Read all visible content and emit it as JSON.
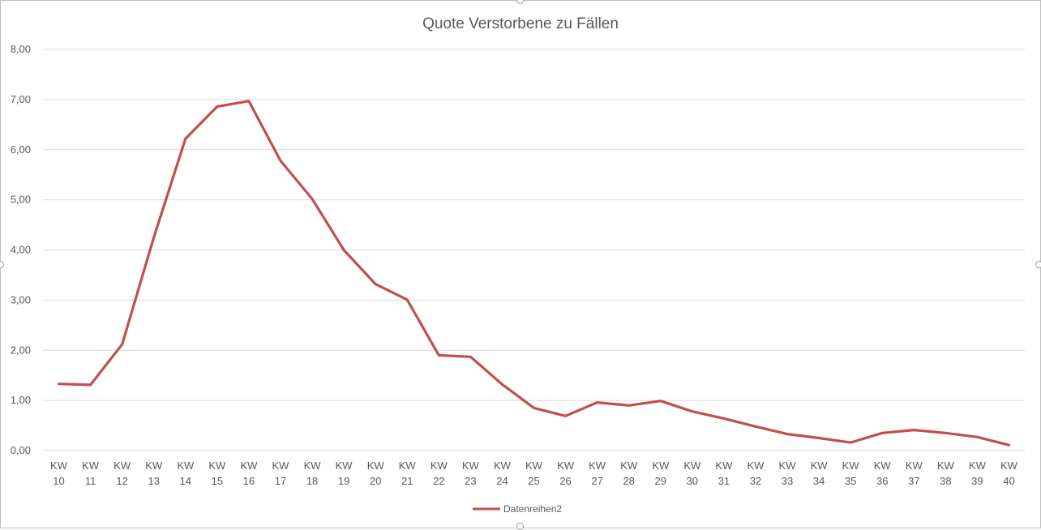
{
  "chart_data": {
    "type": "line",
    "title": "Quote Verstorbene zu Fällen",
    "xlabel": "",
    "ylabel": "",
    "ylim": [
      0,
      8
    ],
    "yticks": [
      "0,00",
      "1,00",
      "2,00",
      "3,00",
      "4,00",
      "5,00",
      "6,00",
      "7,00",
      "8,00"
    ],
    "categories": [
      [
        "KW",
        "10"
      ],
      [
        "KW",
        "11"
      ],
      [
        "KW",
        "12"
      ],
      [
        "KW",
        "13"
      ],
      [
        "KW",
        "14"
      ],
      [
        "KW",
        "15"
      ],
      [
        "KW",
        "16"
      ],
      [
        "KW",
        "17"
      ],
      [
        "KW",
        "18"
      ],
      [
        "KW",
        "19"
      ],
      [
        "KW",
        "20"
      ],
      [
        "KW",
        "21"
      ],
      [
        "KW",
        "22"
      ],
      [
        "KW",
        "23"
      ],
      [
        "KW",
        "24"
      ],
      [
        "KW",
        "25"
      ],
      [
        "KW",
        "26"
      ],
      [
        "KW",
        "27"
      ],
      [
        "KW",
        "28"
      ],
      [
        "KW",
        "29"
      ],
      [
        "KW",
        "30"
      ],
      [
        "KW",
        "31"
      ],
      [
        "KW",
        "32"
      ],
      [
        "KW",
        "33"
      ],
      [
        "KW",
        "34"
      ],
      [
        "KW",
        "35"
      ],
      [
        "KW",
        "36"
      ],
      [
        "KW",
        "37"
      ],
      [
        "KW",
        "38"
      ],
      [
        "KW",
        "39"
      ],
      [
        "KW",
        "40"
      ]
    ],
    "series": [
      {
        "name": "Datenreihen2",
        "color": "#c0504d",
        "values": [
          1.33,
          1.31,
          2.12,
          4.25,
          6.22,
          6.86,
          6.97,
          5.78,
          5.02,
          4.0,
          3.32,
          3.01,
          1.9,
          1.87,
          1.32,
          0.85,
          0.69,
          0.96,
          0.9,
          0.99,
          0.78,
          0.64,
          0.48,
          0.33,
          0.25,
          0.16,
          0.35,
          0.41,
          0.35,
          0.27,
          0.11
        ]
      }
    ],
    "grid": true,
    "gridColor": "#d9d9d9",
    "legend": "bottom"
  }
}
